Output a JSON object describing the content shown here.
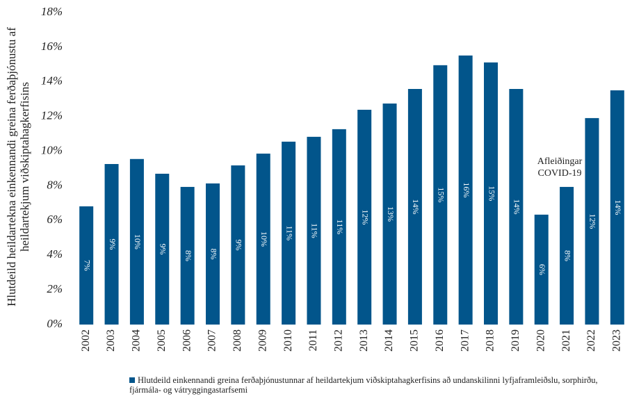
{
  "chart_data": {
    "type": "bar",
    "y_label": [
      "Hlutdeild heildartekna einkennandi greina ferðaþjónustu af",
      "heildartekjum viðskiptahagkerfisins"
    ],
    "annotation": [
      "Afleiðingar",
      "COVID-19"
    ],
    "categories": [
      "2002",
      "2003",
      "2004",
      "2005",
      "2006",
      "2007",
      "2008",
      "2009",
      "2010",
      "2011",
      "2012",
      "2013",
      "2014",
      "2015",
      "2016",
      "2017",
      "2018",
      "2019",
      "2020",
      "2021",
      "2022",
      "2023"
    ],
    "series": [
      {
        "name": "Hlutdeild einkennandi greina ferðaþjónustunnar af heildartekjum viðskiptahagkerfisins að undanskilinni lyfjaframleiðslu, sorphirðu, fjármála- og vátryggingastarfsemi",
        "color": "#02558b",
        "values": [
          6.82,
          9.26,
          9.55,
          8.7,
          7.94,
          8.14,
          9.18,
          9.86,
          10.55,
          10.83,
          11.27,
          12.39,
          12.75,
          13.59,
          14.96,
          15.52,
          15.12,
          13.59,
          6.34,
          7.94,
          11.91,
          13.51
        ],
        "value_labels": [
          "7%",
          "9%",
          "10%",
          "9%",
          "8%",
          "8%",
          "9%",
          "10%",
          "11%",
          "11%",
          "11%",
          "12%",
          "13%",
          "14%",
          "15%",
          "16%",
          "15%",
          "14%",
          "6%",
          "8%",
          "12%",
          "14%"
        ]
      }
    ],
    "ylim": [
      0,
      18
    ],
    "yticks": [
      {
        "value": 0,
        "label": "0%"
      },
      {
        "value": 2,
        "label": "2%"
      },
      {
        "value": 4,
        "label": "4%"
      },
      {
        "value": 6,
        "label": "6%"
      },
      {
        "value": 8,
        "label": "8%"
      },
      {
        "value": 10,
        "label": "10%"
      },
      {
        "value": 12,
        "label": "12%"
      },
      {
        "value": 14,
        "label": "14%"
      },
      {
        "value": 16,
        "label": "16%"
      },
      {
        "value": 18,
        "label": "18%"
      }
    ],
    "grid": false
  }
}
